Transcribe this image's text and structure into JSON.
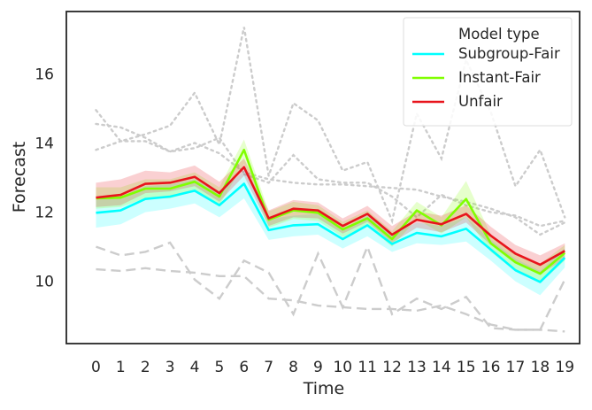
{
  "chart_data": {
    "type": "line",
    "xlabel": "Time",
    "ylabel": "Forecast",
    "x": [
      0,
      1,
      2,
      3,
      4,
      5,
      6,
      7,
      8,
      9,
      10,
      11,
      12,
      13,
      14,
      15,
      16,
      17,
      18,
      19
    ],
    "xlim": [
      -1.2,
      19.6
    ],
    "ylim": [
      8.2,
      17.8
    ],
    "yticks": [
      10,
      12,
      14,
      16
    ],
    "grid": false,
    "legend": {
      "title": "Model type",
      "placement": "top-right",
      "entries": [
        "Subgroup-Fair",
        "Instant-Fair",
        "Unfair"
      ]
    },
    "series": [
      {
        "name": "Subgroup-Fair",
        "color": "#00ffff",
        "values": [
          11.98,
          12.05,
          12.38,
          12.45,
          12.62,
          12.2,
          12.82,
          11.48,
          11.62,
          11.65,
          11.22,
          11.62,
          11.08,
          11.4,
          11.3,
          11.52,
          10.92,
          10.32,
          9.98,
          10.68
        ],
        "lower": [
          11.55,
          11.65,
          12.0,
          12.1,
          12.25,
          11.85,
          12.4,
          11.2,
          11.3,
          11.35,
          10.95,
          11.3,
          10.85,
          11.1,
          11.05,
          11.15,
          10.6,
          10.0,
          9.6,
          10.4
        ],
        "upper": [
          12.35,
          12.45,
          12.75,
          12.8,
          12.95,
          12.55,
          13.2,
          11.8,
          11.9,
          11.95,
          11.5,
          11.9,
          11.35,
          11.7,
          11.6,
          11.85,
          11.2,
          10.65,
          10.3,
          10.95
        ]
      },
      {
        "name": "Instant-Fair",
        "color": "#80ff00",
        "values": [
          12.4,
          12.42,
          12.68,
          12.68,
          12.88,
          12.45,
          13.8,
          11.78,
          12.05,
          11.98,
          11.5,
          11.82,
          11.22,
          12.05,
          11.62,
          12.38,
          11.1,
          10.55,
          10.22,
          10.82
        ],
        "lower": [
          12.1,
          12.15,
          12.4,
          12.4,
          12.6,
          12.2,
          13.4,
          11.55,
          11.8,
          11.75,
          11.28,
          11.6,
          11.0,
          11.8,
          11.38,
          11.85,
          10.85,
          10.3,
          9.95,
          10.6
        ],
        "upper": [
          12.72,
          12.72,
          12.95,
          12.95,
          13.15,
          12.72,
          14.1,
          12.02,
          12.3,
          12.2,
          11.72,
          12.05,
          11.45,
          12.3,
          11.85,
          12.9,
          11.35,
          10.8,
          10.5,
          11.05
        ]
      },
      {
        "name": "Unfair",
        "color": "#e8141c",
        "values": [
          12.42,
          12.5,
          12.82,
          12.85,
          13.02,
          12.55,
          13.3,
          11.82,
          12.1,
          12.05,
          11.6,
          11.95,
          11.35,
          11.78,
          11.65,
          11.95,
          11.32,
          10.8,
          10.48,
          10.88
        ],
        "lower": [
          12.15,
          12.2,
          12.55,
          12.6,
          12.75,
          12.3,
          13.05,
          11.6,
          11.85,
          11.82,
          11.38,
          11.72,
          11.12,
          11.55,
          11.42,
          11.7,
          11.05,
          10.55,
          10.2,
          10.65
        ],
        "upper": [
          12.85,
          12.95,
          13.2,
          13.15,
          13.35,
          12.88,
          13.55,
          12.05,
          12.35,
          12.28,
          11.82,
          12.18,
          11.6,
          12.02,
          11.9,
          12.2,
          11.58,
          11.05,
          10.75,
          11.1
        ]
      }
    ],
    "reference_lines": [
      {
        "style": "dotted",
        "color": "#cccccc",
        "values": [
          14.95,
          14.05,
          14.25,
          14.5,
          15.45,
          13.95,
          17.35,
          13.05,
          15.15,
          14.65,
          13.2,
          13.45,
          11.75,
          14.85,
          13.55,
          16.4,
          14.9,
          12.75,
          13.8,
          11.85
        ]
      },
      {
        "style": "dotted",
        "color": "#cccccc",
        "values": [
          13.8,
          14.05,
          14.05,
          13.75,
          13.85,
          14.15,
          13.1,
          12.85,
          13.65,
          12.95,
          12.85,
          12.85,
          12.45,
          11.85,
          12.5,
          12.2,
          12.0,
          11.9,
          11.6,
          11.75
        ]
      },
      {
        "style": "dotted",
        "color": "#cccccc",
        "values": [
          14.55,
          14.45,
          14.15,
          13.75,
          14.0,
          13.7,
          13.15,
          12.95,
          12.85,
          12.8,
          12.8,
          12.75,
          12.7,
          12.65,
          12.45,
          12.3,
          12.1,
          11.85,
          11.35,
          11.7
        ]
      },
      {
        "style": "dashed",
        "color": "#cccccc",
        "values": [
          11.0,
          10.75,
          10.85,
          11.12,
          10.05,
          9.5,
          10.6,
          10.25,
          9.05,
          10.8,
          9.25,
          11.0,
          9.05,
          9.5,
          9.2,
          9.55,
          8.65,
          8.6,
          8.6,
          10.05
        ]
      },
      {
        "style": "dashed",
        "color": "#cccccc",
        "values": [
          10.35,
          10.3,
          10.38,
          10.3,
          10.25,
          10.15,
          10.15,
          9.5,
          9.45,
          9.3,
          9.25,
          9.2,
          9.2,
          9.15,
          9.3,
          9.05,
          8.75,
          8.6,
          8.6,
          8.55
        ]
      }
    ]
  }
}
